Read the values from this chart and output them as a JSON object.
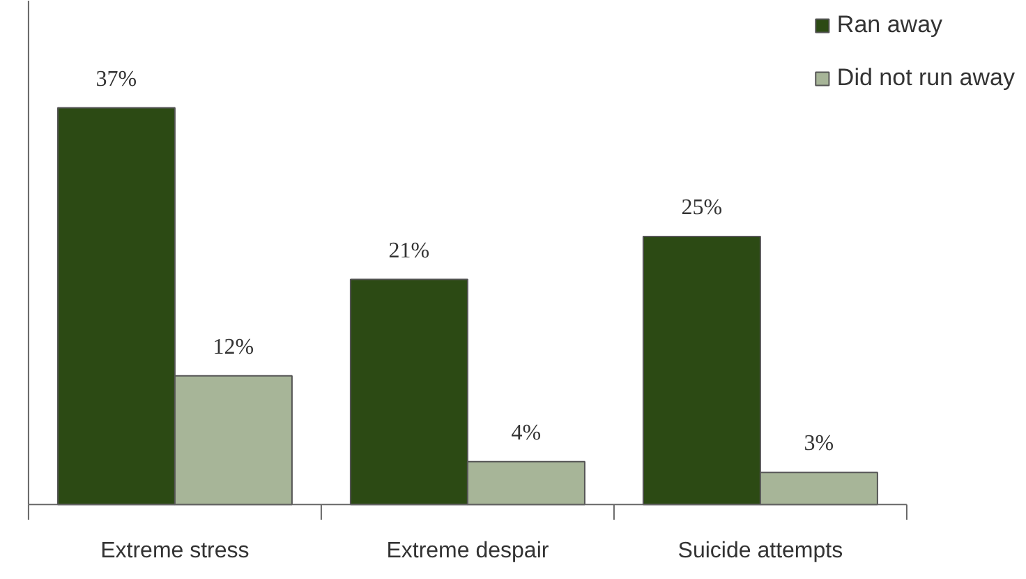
{
  "chart_data": {
    "type": "bar",
    "categories": [
      "Extreme stress",
      "Extreme despair",
      "Suicide attempts"
    ],
    "series": [
      {
        "name": "Ran away",
        "color": "#2c4a14",
        "values": [
          37,
          21,
          25
        ],
        "value_labels": [
          "37%",
          "21%",
          "25%"
        ]
      },
      {
        "name": "Did not run away",
        "color": "#a7b598",
        "values": [
          12,
          4,
          3
        ],
        "value_labels": [
          "12%",
          "4%",
          "3%"
        ]
      }
    ],
    "legend": "top right",
    "grid": false
  }
}
